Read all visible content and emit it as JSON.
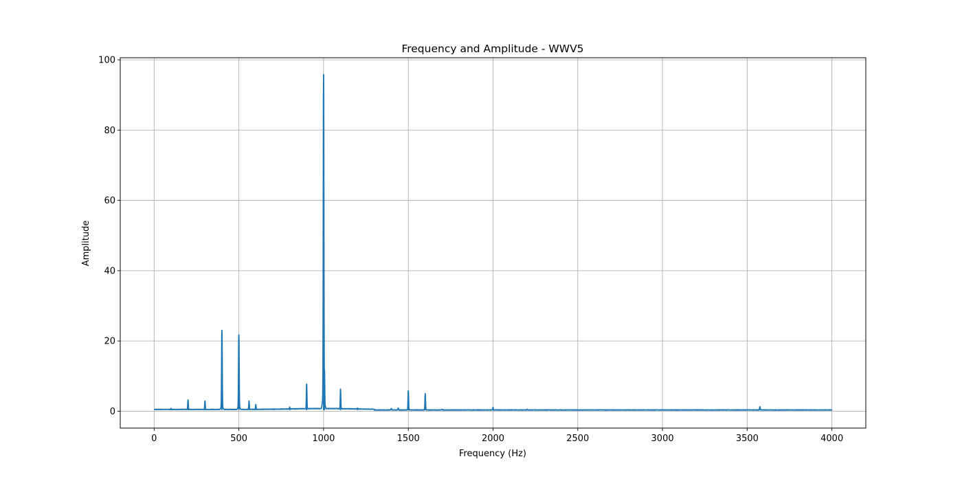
{
  "chart_data": {
    "type": "line",
    "title": "Frequency and Amplitude - WWV5",
    "xlabel": "Frequency (Hz)",
    "ylabel": "Amplitude",
    "xlim": [
      -200,
      4200
    ],
    "ylim": [
      -4.8,
      100.6
    ],
    "xticks": [
      0,
      500,
      1000,
      1500,
      2000,
      2500,
      3000,
      3500,
      4000
    ],
    "yticks": [
      0,
      20,
      40,
      60,
      80,
      100
    ],
    "grid": true,
    "line_color": "#1f77b4",
    "series": [
      {
        "name": "",
        "baseline": 0.3,
        "range": [
          0,
          4000
        ],
        "peaks": [
          {
            "x": 100,
            "y": 0.8
          },
          {
            "x": 200,
            "y": 3.2
          },
          {
            "x": 300,
            "y": 2.9
          },
          {
            "x": 400,
            "y": 23.0
          },
          {
            "x": 500,
            "y": 21.7
          },
          {
            "x": 560,
            "y": 2.9
          },
          {
            "x": 600,
            "y": 1.9
          },
          {
            "x": 700,
            "y": 0.6
          },
          {
            "x": 800,
            "y": 1.2
          },
          {
            "x": 900,
            "y": 7.7
          },
          {
            "x": 1000,
            "y": 95.8
          },
          {
            "x": 1005,
            "y": 11.9
          },
          {
            "x": 1100,
            "y": 6.3
          },
          {
            "x": 1200,
            "y": 0.9
          },
          {
            "x": 1400,
            "y": 0.8
          },
          {
            "x": 1440,
            "y": 0.9
          },
          {
            "x": 1500,
            "y": 5.8
          },
          {
            "x": 1600,
            "y": 5.0
          },
          {
            "x": 1700,
            "y": 0.6
          },
          {
            "x": 2000,
            "y": 1.1
          },
          {
            "x": 2200,
            "y": 0.6
          },
          {
            "x": 3575,
            "y": 1.3
          }
        ]
      }
    ]
  }
}
